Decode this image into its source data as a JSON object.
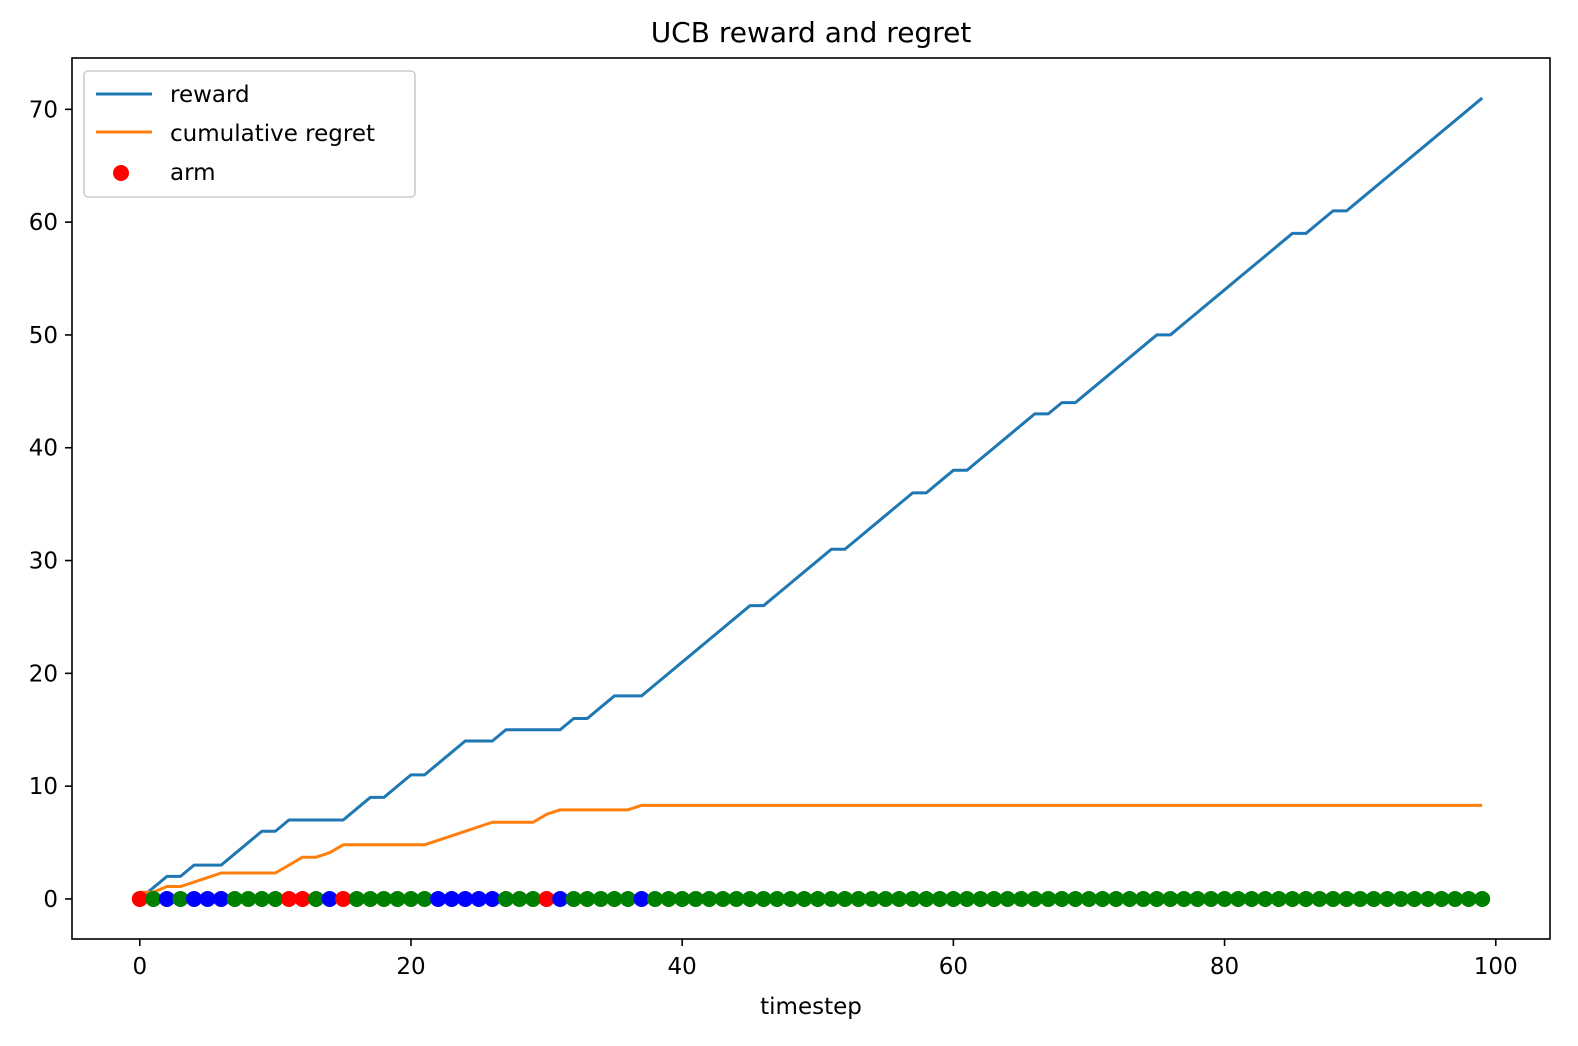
{
  "chart_data": {
    "type": "line",
    "title": "UCB reward and regret",
    "xlabel": "timestep",
    "ylabel": "",
    "xlim": [
      -5,
      104
    ],
    "ylim": [
      -3.55,
      74.55
    ],
    "xticks": [
      0,
      20,
      40,
      60,
      80,
      100
    ],
    "yticks": [
      0,
      10,
      20,
      30,
      40,
      50,
      60,
      70
    ],
    "grid": false,
    "legend_position": "top-left",
    "series": [
      {
        "name": "reward",
        "type": "line",
        "color": "#1f77b4",
        "x": [
          0,
          1,
          2,
          3,
          4,
          5,
          6,
          7,
          8,
          9,
          10,
          11,
          12,
          13,
          14,
          15,
          16,
          17,
          18,
          19,
          20,
          21,
          22,
          23,
          24,
          25,
          26,
          27,
          28,
          29,
          30,
          31,
          32,
          33,
          34,
          35,
          36,
          37,
          38,
          39,
          40,
          41,
          42,
          43,
          44,
          45,
          46,
          47,
          48,
          49,
          50,
          51,
          52,
          53,
          54,
          55,
          56,
          57,
          58,
          59,
          60,
          61,
          62,
          63,
          64,
          65,
          66,
          67,
          68,
          69,
          70,
          71,
          72,
          73,
          74,
          75,
          76,
          77,
          78,
          79,
          80,
          81,
          82,
          83,
          84,
          85,
          86,
          87,
          88,
          89,
          90,
          91,
          92,
          93,
          94,
          95,
          96,
          97,
          98,
          99
        ],
        "y": [
          0,
          1,
          2,
          2,
          3,
          3,
          3,
          4,
          5,
          6,
          6,
          7,
          7,
          7,
          7,
          7,
          8,
          9,
          9,
          10,
          11,
          11,
          12,
          13,
          14,
          14,
          14,
          15,
          15,
          15,
          15,
          15,
          16,
          16,
          17,
          18,
          18,
          18,
          19,
          20,
          21,
          22,
          23,
          24,
          25,
          26,
          26,
          27,
          28,
          29,
          30,
          31,
          31,
          32,
          33,
          34,
          35,
          36,
          36,
          37,
          38,
          38,
          39,
          40,
          41,
          42,
          43,
          43,
          44,
          44,
          45,
          46,
          47,
          48,
          49,
          50,
          50,
          51,
          52,
          53,
          54,
          55,
          56,
          57,
          58,
          59,
          59,
          60,
          61,
          61,
          62,
          63,
          64,
          65,
          66,
          67,
          68,
          69,
          70,
          71
        ]
      },
      {
        "name": "cumulative regret",
        "type": "line",
        "color": "#ff7f0e",
        "x": [
          0,
          1,
          2,
          3,
          4,
          5,
          6,
          7,
          8,
          9,
          10,
          11,
          12,
          13,
          14,
          15,
          16,
          17,
          18,
          19,
          20,
          21,
          22,
          23,
          24,
          25,
          26,
          27,
          28,
          29,
          30,
          31,
          32,
          33,
          34,
          35,
          36,
          37,
          38,
          39,
          40,
          41,
          42,
          43,
          44,
          45,
          46,
          47,
          48,
          49,
          50,
          51,
          52,
          53,
          54,
          55,
          56,
          57,
          58,
          59,
          60,
          61,
          62,
          63,
          64,
          65,
          66,
          67,
          68,
          69,
          70,
          71,
          72,
          73,
          74,
          75,
          76,
          77,
          78,
          79,
          80,
          81,
          82,
          83,
          84,
          85,
          86,
          87,
          88,
          89,
          90,
          91,
          92,
          93,
          94,
          95,
          96,
          97,
          98,
          99
        ],
        "y": [
          0.6,
          0.6,
          1.1,
          1.1,
          1.5,
          1.9,
          2.3,
          2.3,
          2.3,
          2.3,
          2.3,
          3.0,
          3.7,
          3.7,
          4.1,
          4.8,
          4.8,
          4.8,
          4.8,
          4.8,
          4.8,
          4.8,
          5.2,
          5.6,
          6.0,
          6.4,
          6.8,
          6.8,
          6.8,
          6.8,
          7.5,
          7.9,
          7.9,
          7.9,
          7.9,
          7.9,
          7.9,
          8.3,
          8.3,
          8.3,
          8.3,
          8.3,
          8.3,
          8.3,
          8.3,
          8.3,
          8.3,
          8.3,
          8.3,
          8.3,
          8.3,
          8.3,
          8.3,
          8.3,
          8.3,
          8.3,
          8.3,
          8.3,
          8.3,
          8.3,
          8.3,
          8.3,
          8.3,
          8.3,
          8.3,
          8.3,
          8.3,
          8.3,
          8.3,
          8.3,
          8.3,
          8.3,
          8.3,
          8.3,
          8.3,
          8.3,
          8.3,
          8.3,
          8.3,
          8.3,
          8.3,
          8.3,
          8.3,
          8.3,
          8.3,
          8.3,
          8.3,
          8.3,
          8.3,
          8.3,
          8.3,
          8.3,
          8.3,
          8.3,
          8.3,
          8.3,
          8.3,
          8.3,
          8.3,
          8.3
        ]
      },
      {
        "name": "arm",
        "type": "scatter",
        "legend_color": "#ff0000",
        "arm_colors": {
          "0": "#ff0000",
          "1": "#0000ff",
          "2": "#008000"
        },
        "x": [
          0,
          1,
          2,
          3,
          4,
          5,
          6,
          7,
          8,
          9,
          10,
          11,
          12,
          13,
          14,
          15,
          16,
          17,
          18,
          19,
          20,
          21,
          22,
          23,
          24,
          25,
          26,
          27,
          28,
          29,
          30,
          31,
          32,
          33,
          34,
          35,
          36,
          37,
          38,
          39,
          40,
          41,
          42,
          43,
          44,
          45,
          46,
          47,
          48,
          49,
          50,
          51,
          52,
          53,
          54,
          55,
          56,
          57,
          58,
          59,
          60,
          61,
          62,
          63,
          64,
          65,
          66,
          67,
          68,
          69,
          70,
          71,
          72,
          73,
          74,
          75,
          76,
          77,
          78,
          79,
          80,
          81,
          82,
          83,
          84,
          85,
          86,
          87,
          88,
          89,
          90,
          91,
          92,
          93,
          94,
          95,
          96,
          97,
          98,
          99
        ],
        "y": [
          0,
          0,
          0,
          0,
          0,
          0,
          0,
          0,
          0,
          0,
          0,
          0,
          0,
          0,
          0,
          0,
          0,
          0,
          0,
          0,
          0,
          0,
          0,
          0,
          0,
          0,
          0,
          0,
          0,
          0,
          0,
          0,
          0,
          0,
          0,
          0,
          0,
          0,
          0,
          0,
          0,
          0,
          0,
          0,
          0,
          0,
          0,
          0,
          0,
          0,
          0,
          0,
          0,
          0,
          0,
          0,
          0,
          0,
          0,
          0,
          0,
          0,
          0,
          0,
          0,
          0,
          0,
          0,
          0,
          0,
          0,
          0,
          0,
          0,
          0,
          0,
          0,
          0,
          0,
          0,
          0,
          0,
          0,
          0,
          0,
          0,
          0,
          0,
          0,
          0,
          0,
          0,
          0,
          0,
          0,
          0,
          0,
          0,
          0,
          0
        ],
        "arm": [
          0,
          2,
          1,
          2,
          1,
          1,
          1,
          2,
          2,
          2,
          2,
          0,
          0,
          2,
          1,
          0,
          2,
          2,
          2,
          2,
          2,
          2,
          1,
          1,
          1,
          1,
          1,
          2,
          2,
          2,
          0,
          1,
          2,
          2,
          2,
          2,
          2,
          1,
          2,
          2,
          2,
          2,
          2,
          2,
          2,
          2,
          2,
          2,
          2,
          2,
          2,
          2,
          2,
          2,
          2,
          2,
          2,
          2,
          2,
          2,
          2,
          2,
          2,
          2,
          2,
          2,
          2,
          2,
          2,
          2,
          2,
          2,
          2,
          2,
          2,
          2,
          2,
          2,
          2,
          2,
          2,
          2,
          2,
          2,
          2,
          2,
          2,
          2,
          2,
          2,
          2,
          2,
          2,
          2,
          2,
          2,
          2,
          2,
          2,
          2
        ]
      }
    ]
  }
}
